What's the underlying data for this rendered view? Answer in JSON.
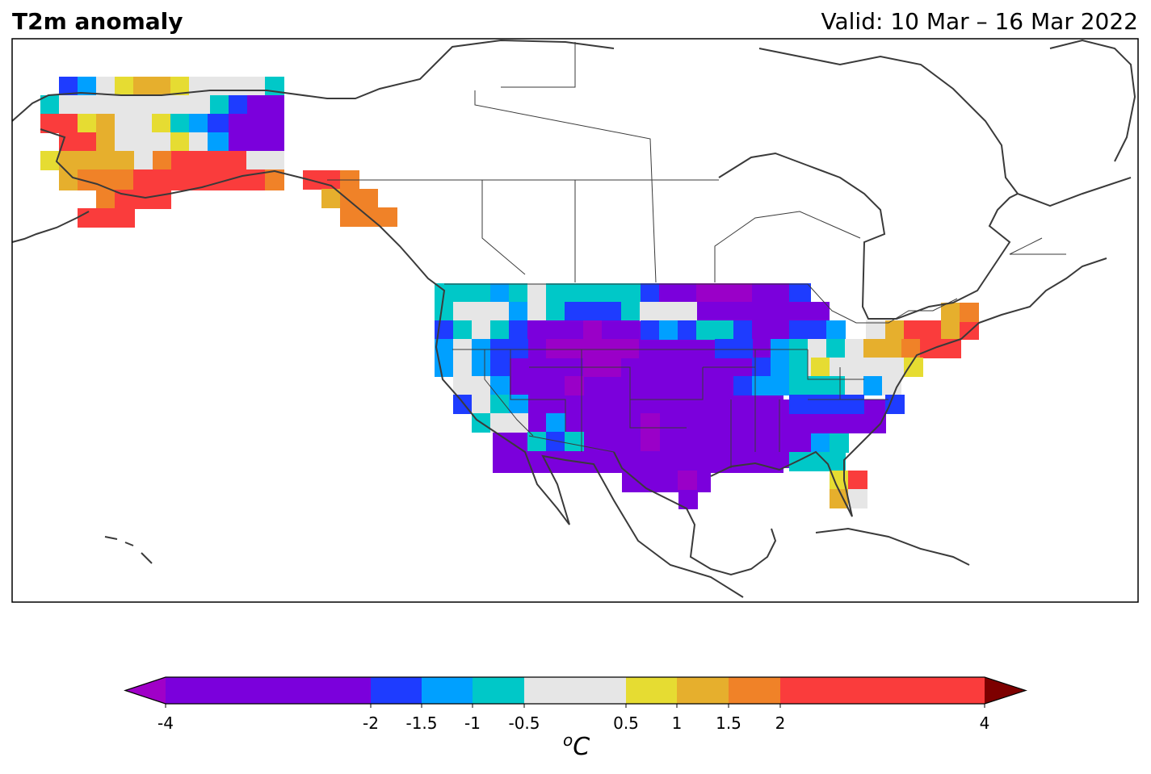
{
  "title": "T2m anomaly",
  "valid": "Valid: 10 Mar – 16 Mar 2022",
  "colorbar": {
    "unit_base": "C",
    "unit_sup": "o",
    "ticks": [
      "-4",
      "-2",
      "-1.5",
      "-1",
      "-0.5",
      "0.5",
      "1",
      "1.5",
      "2",
      "4"
    ],
    "bins": [
      {
        "from": -4,
        "to": -2,
        "color": "#7b00dc"
      },
      {
        "from": -2,
        "to": -1.5,
        "color": "#1e3cff"
      },
      {
        "from": -1.5,
        "to": -1,
        "color": "#00a0ff"
      },
      {
        "from": -1,
        "to": -0.5,
        "color": "#00c8c8"
      },
      {
        "from": -0.5,
        "to": 0.5,
        "color": "#e6e6e6"
      },
      {
        "from": 0.5,
        "to": 1,
        "color": "#e6dc32"
      },
      {
        "from": 1,
        "to": 1.5,
        "color": "#e6af2d"
      },
      {
        "from": 1.5,
        "to": 2,
        "color": "#f08228"
      },
      {
        "from": 2,
        "to": 4,
        "color": "#fa3c3c"
      }
    ],
    "under_color": "#a000c8",
    "over_color": "#7d0000"
  }
}
